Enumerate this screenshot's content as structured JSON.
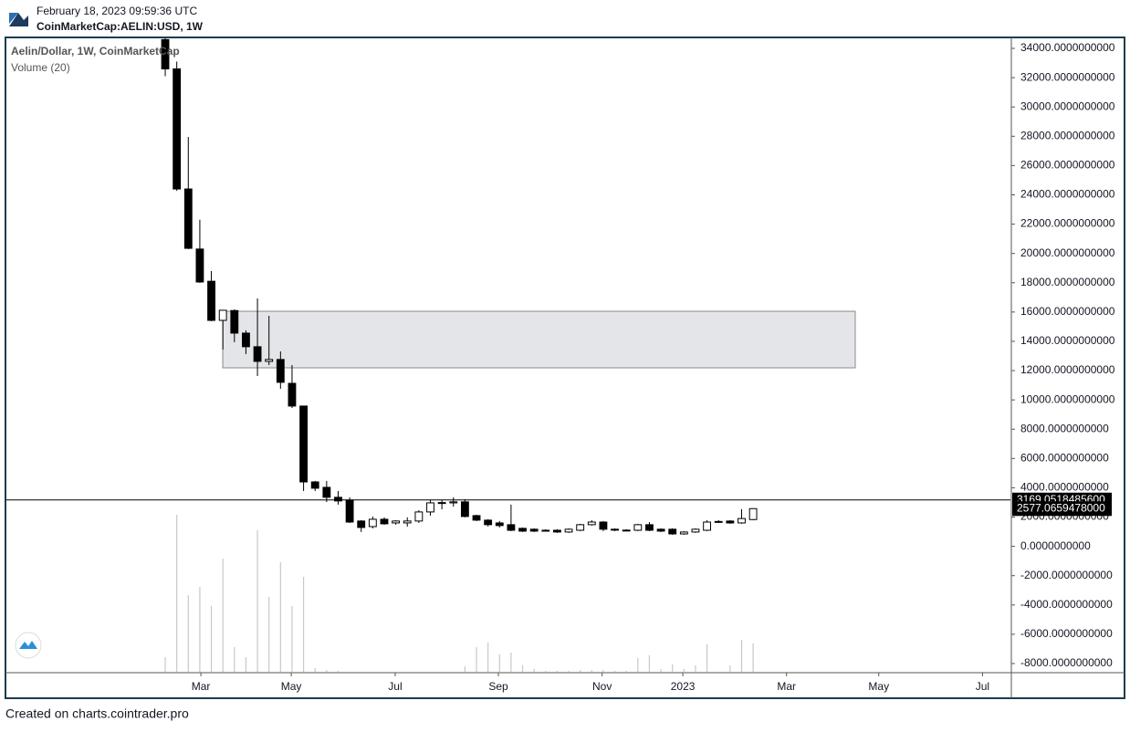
{
  "header": {
    "timestamp": "February 18, 2023 09:59:36 UTC",
    "symbol": "CoinMarketCap:AELIN:USD, 1W"
  },
  "footer": "Created on charts.cointrader.pro",
  "chart_data": {
    "type": "candlestick",
    "title": "Aelin/Dollar, 1W, CoinMarketCap",
    "up_color": "#ffffff",
    "down_color": "#000000",
    "x": [
      0,
      1,
      2,
      3,
      4,
      5,
      6,
      7,
      8,
      9,
      10,
      11,
      12,
      13,
      14,
      15,
      16,
      17,
      18,
      19,
      20,
      21,
      22,
      23,
      24,
      25,
      26,
      27,
      28,
      29,
      30,
      31,
      32,
      33,
      34,
      35,
      36,
      37,
      38,
      39,
      40,
      41,
      42,
      43,
      44,
      45,
      46,
      47,
      48,
      49,
      50,
      51
    ],
    "open": [
      34600,
      32600,
      24400,
      20300,
      18100,
      15430,
      16100,
      14560,
      13630,
      12630,
      12760,
      11130,
      9580,
      4400,
      4030,
      3350,
      3160,
      1730,
      1350,
      1850,
      1600,
      1600,
      1730,
      2350,
      2950,
      2970,
      3040,
      2100,
      1790,
      1600,
      1480,
      1230,
      1170,
      1100,
      1100,
      980,
      1100,
      1480,
      1660,
      1170,
      1110,
      1100,
      1480,
      1170,
      1170,
      850,
      980,
      1100,
      1660,
      1730,
      1600,
      1830
    ],
    "high": [
      35000,
      33100,
      27950,
      22300,
      18800,
      16150,
      16180,
      14750,
      16930,
      15740,
      13310,
      12380,
      9600,
      4470,
      4470,
      3780,
      3350,
      1790,
      2040,
      1980,
      1790,
      1980,
      2470,
      3160,
      3160,
      3350,
      3220,
      2160,
      1850,
      1730,
      2850,
      1290,
      1230,
      1170,
      1170,
      1230,
      1540,
      1790,
      1730,
      1230,
      1170,
      1540,
      1660,
      1230,
      1230,
      1040,
      1230,
      1790,
      1790,
      1790,
      2540,
      2600
    ],
    "low": [
      32100,
      24280,
      20300,
      17990,
      15370,
      13440,
      13940,
      13130,
      11630,
      12380,
      10760,
      9450,
      3780,
      3780,
      3030,
      2850,
      1600,
      980,
      1230,
      1480,
      1480,
      1350,
      1600,
      2100,
      2530,
      2720,
      1980,
      1730,
      1360,
      1290,
      1040,
      980,
      980,
      1040,
      920,
      920,
      1040,
      1420,
      1040,
      1040,
      1040,
      1040,
      1040,
      980,
      790,
      790,
      920,
      1040,
      1600,
      1540,
      1540,
      1790
    ],
    "close": [
      32600,
      24400,
      20350,
      18050,
      15430,
      16120,
      14560,
      13630,
      12630,
      12760,
      11200,
      9580,
      4400,
      3970,
      3350,
      3100,
      1660,
      1290,
      1850,
      1540,
      1730,
      1730,
      2350,
      2970,
      2990,
      3040,
      2040,
      1790,
      1480,
      1420,
      1100,
      1040,
      1040,
      1070,
      980,
      1170,
      1480,
      1660,
      1170,
      1110,
      1070,
      1480,
      1100,
      1040,
      850,
      980,
      1170,
      1660,
      1700,
      1600,
      1900,
      2577.0659478
    ],
    "volume": {
      "name": "Volume (20)",
      "color": "#c8c8c8",
      "ylim": [
        0,
        696
      ],
      "values": [
        17,
        173,
        85,
        94,
        73,
        125,
        28,
        17,
        156,
        83,
        121,
        73,
        105,
        5,
        3,
        2,
        1,
        1,
        1,
        1,
        1,
        1,
        1,
        1,
        1,
        1,
        7,
        28,
        33,
        20,
        22,
        8,
        4,
        2,
        2,
        2,
        3,
        3,
        3,
        2,
        2,
        16,
        19,
        4,
        9,
        4,
        8,
        31,
        1,
        8,
        36,
        32
      ]
    },
    "zone": {
      "x": [
        4.99,
        59.86
      ],
      "y": [
        12190,
        16050
      ],
      "color": "#e4e5e8"
    },
    "price_labels": [
      {
        "value": 3169.05184856,
        "label": "3169.0518485600"
      },
      {
        "value": 2577.0659478,
        "label": "2577.0659478000"
      }
    ],
    "xlim": [
      -13.86,
      73.4
    ],
    "xticks": [
      {
        "value": 3.09,
        "label": "Mar"
      },
      {
        "value": 10.93,
        "label": "May"
      },
      {
        "value": 19.95,
        "label": "Jul"
      },
      {
        "value": 28.9,
        "label": "Sep"
      },
      {
        "value": 37.9,
        "label": "Nov"
      },
      {
        "value": 44.9,
        "label": "2023"
      },
      {
        "value": 53.9,
        "label": "Mar"
      },
      {
        "value": 61.9,
        "label": "May"
      },
      {
        "value": 70.9,
        "label": "Jul"
      }
    ],
    "ylim": [
      -8623,
      34748
    ],
    "yticks": [
      {
        "value": 34000,
        "label": "34000.0000000000"
      },
      {
        "value": 32000,
        "label": "32000.0000000000"
      },
      {
        "value": 30000,
        "label": "30000.0000000000"
      },
      {
        "value": 28000,
        "label": "28000.0000000000"
      },
      {
        "value": 26000,
        "label": "26000.0000000000"
      },
      {
        "value": 24000,
        "label": "24000.0000000000"
      },
      {
        "value": 22000,
        "label": "22000.0000000000"
      },
      {
        "value": 20000,
        "label": "20000.0000000000"
      },
      {
        "value": 18000,
        "label": "18000.0000000000"
      },
      {
        "value": 16000,
        "label": "16000.0000000000"
      },
      {
        "value": 14000,
        "label": "14000.0000000000"
      },
      {
        "value": 12000,
        "label": "12000.0000000000"
      },
      {
        "value": 10000,
        "label": "10000.0000000000"
      },
      {
        "value": 8000,
        "label": "8000.0000000000"
      },
      {
        "value": 6000,
        "label": "6000.0000000000"
      },
      {
        "value": 4000,
        "label": "4000.0000000000"
      },
      {
        "value": 2000,
        "label": "2000.0000000000"
      },
      {
        "value": 0,
        "label": "0.0000000000"
      },
      {
        "value": -2000,
        "label": "-2000.0000000000"
      },
      {
        "value": -4000,
        "label": "-4000.0000000000"
      },
      {
        "value": -6000,
        "label": "-6000.0000000000"
      },
      {
        "value": -8000,
        "label": "-8000.0000000000"
      }
    ]
  }
}
